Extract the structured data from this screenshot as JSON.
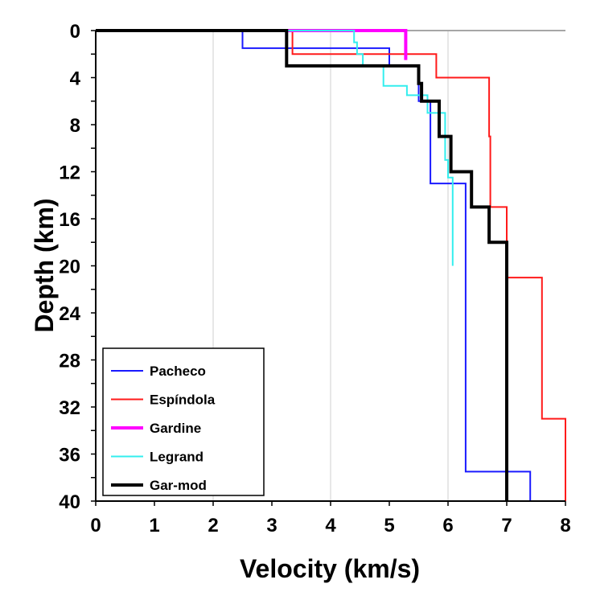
{
  "chart_data": {
    "type": "line",
    "title": "",
    "xlabel": "Velocity (km/s)",
    "ylabel": "Depth (km)",
    "xlim": [
      0,
      8
    ],
    "ylim": [
      40,
      0
    ],
    "x_ticks": [
      "0",
      "1",
      "2",
      "3",
      "4",
      "5",
      "6",
      "7",
      "8"
    ],
    "y_ticks": [
      "0",
      "4",
      "8",
      "12",
      "16",
      "20",
      "24",
      "28",
      "32",
      "36",
      "40"
    ],
    "x_grid": true,
    "y_grid": false,
    "legend_position": "bottom-left",
    "series": [
      {
        "name": "Pacheco",
        "color": "#1a1aff",
        "width": 2,
        "x": [
          0,
          2.5,
          2.5,
          5.0,
          5.0,
          5.5,
          5.5,
          5.7,
          5.7,
          6.3,
          6.3,
          7.4,
          7.4
        ],
        "y": [
          0,
          0,
          1.5,
          1.5,
          3.0,
          3.0,
          6.0,
          6.0,
          13.0,
          13.0,
          37.5,
          37.5,
          40.0
        ]
      },
      {
        "name": "Espíndola",
        "color": "#ff1a1a",
        "width": 2,
        "x": [
          0,
          3.35,
          3.35,
          5.8,
          5.8,
          6.7,
          6.7,
          6.72,
          6.72,
          7.0,
          7.0,
          7.6,
          7.6,
          8.0,
          8.0
        ],
        "y": [
          0,
          0,
          2.0,
          2.0,
          4.0,
          4.0,
          9.0,
          9.0,
          15.0,
          15.0,
          21.0,
          21.0,
          33.0,
          33.0,
          40.0
        ]
      },
      {
        "name": "Gardine",
        "color": "#ff00ff",
        "width": 4,
        "x": [
          0,
          5.28,
          5.28
        ],
        "y": [
          0,
          0,
          2.5
        ]
      },
      {
        "name": "Legrand",
        "color": "#33eeee",
        "width": 2,
        "x": [
          0,
          4.4,
          4.4,
          4.45,
          4.45,
          4.55,
          4.55,
          4.9,
          4.9,
          5.3,
          5.3,
          5.65,
          5.65,
          5.95,
          5.95,
          6.0,
          6.0,
          6.08,
          6.08
        ],
        "y": [
          0,
          0,
          1.0,
          1.0,
          2.0,
          2.0,
          3.0,
          3.0,
          4.7,
          4.7,
          5.5,
          5.5,
          7.0,
          7.0,
          11.0,
          11.0,
          12.5,
          12.5,
          20.0
        ]
      },
      {
        "name": "Gar-mod",
        "color": "#000000",
        "width": 4,
        "x": [
          0,
          3.25,
          3.25,
          5.5,
          5.5,
          5.55,
          5.55,
          5.85,
          5.85,
          6.05,
          6.05,
          6.4,
          6.4,
          6.7,
          6.7,
          7.0,
          7.0
        ],
        "y": [
          0,
          0,
          3.0,
          3.0,
          4.5,
          4.5,
          6.0,
          6.0,
          9.0,
          9.0,
          12.0,
          12.0,
          15.0,
          15.0,
          18.0,
          18.0,
          40.0
        ]
      }
    ]
  }
}
